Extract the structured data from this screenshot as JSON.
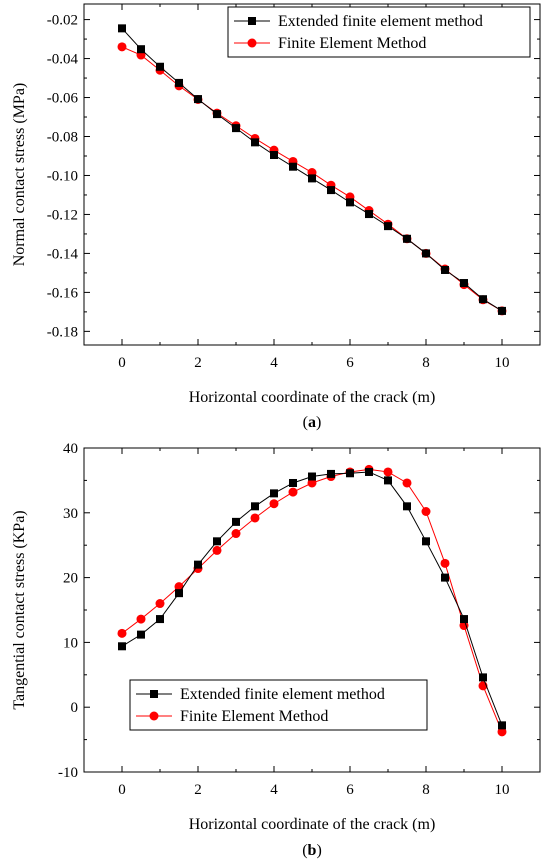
{
  "chart_data": [
    {
      "type": "line",
      "panel_label": "a",
      "xlabel": "Horizontal coordinate of the crack (m)",
      "ylabel": "Normal contact stress (MPa)",
      "xlim": [
        -1,
        11
      ],
      "ylim": [
        -0.187,
        -0.012
      ],
      "xticks": [
        0,
        2,
        4,
        6,
        8,
        10
      ],
      "yticks": [
        -0.02,
        -0.04,
        -0.06,
        -0.08,
        -0.1,
        -0.12,
        -0.14,
        -0.16,
        -0.18
      ],
      "ytick_labels": [
        "-0.02",
        "-0.04",
        "-0.06",
        "-0.08",
        "-0.10",
        "-0.12",
        "-0.14",
        "-0.16",
        "-0.18"
      ],
      "legend_position": "top-right",
      "x": [
        0,
        0.5,
        1,
        1.5,
        2,
        2.5,
        3,
        3.5,
        4,
        4.5,
        5,
        5.5,
        6,
        6.5,
        7,
        7.5,
        8,
        8.5,
        9,
        9.5,
        10
      ],
      "series": [
        {
          "name": "Extended finite element method",
          "color": "#000000",
          "marker": "square",
          "values": [
            -0.0245,
            -0.0352,
            -0.0442,
            -0.0525,
            -0.0608,
            -0.0685,
            -0.0757,
            -0.083,
            -0.0895,
            -0.0955,
            -0.1015,
            -0.1075,
            -0.1138,
            -0.1198,
            -0.126,
            -0.1325,
            -0.14,
            -0.1485,
            -0.1552,
            -0.1635,
            -0.1695
          ]
        },
        {
          "name": "Finite Element Method",
          "color": "#ff0000",
          "marker": "circle",
          "values": [
            -0.034,
            -0.0382,
            -0.046,
            -0.054,
            -0.061,
            -0.068,
            -0.0745,
            -0.081,
            -0.087,
            -0.0928,
            -0.0985,
            -0.105,
            -0.111,
            -0.118,
            -0.125,
            -0.1325,
            -0.14,
            -0.148,
            -0.156,
            -0.1638,
            -0.1695
          ]
        }
      ]
    },
    {
      "type": "line",
      "panel_label": "b",
      "xlabel": "Horizontal coordinate of the crack (m)",
      "ylabel": "Tangential contact stress (KPa)",
      "xlim": [
        -1,
        11
      ],
      "ylim": [
        -10,
        40
      ],
      "xticks": [
        0,
        2,
        4,
        6,
        8,
        10
      ],
      "yticks": [
        -10,
        0,
        10,
        20,
        30,
        40
      ],
      "ytick_labels": [
        "-10",
        "0",
        "10",
        "20",
        "30",
        "40"
      ],
      "legend_position": "bottom-left",
      "x": [
        0,
        0.5,
        1,
        1.5,
        2,
        2.5,
        3,
        3.5,
        4,
        4.5,
        5,
        5.5,
        6,
        6.5,
        7,
        7.5,
        8,
        8.5,
        9,
        9.5,
        10
      ],
      "series": [
        {
          "name": "Extended finite element method",
          "color": "#000000",
          "marker": "square",
          "values": [
            9.4,
            11.2,
            13.6,
            17.6,
            22.0,
            25.6,
            28.6,
            31.0,
            33.0,
            34.6,
            35.6,
            36.0,
            36.1,
            36.3,
            35.0,
            31.0,
            25.6,
            20.0,
            13.6,
            4.6,
            -2.8
          ]
        },
        {
          "name": "Finite Element Method",
          "color": "#ff0000",
          "marker": "circle",
          "values": [
            11.4,
            13.6,
            16.0,
            18.6,
            21.4,
            24.2,
            26.8,
            29.2,
            31.4,
            33.2,
            34.6,
            35.6,
            36.3,
            36.7,
            36.3,
            34.6,
            30.2,
            22.2,
            12.6,
            3.3,
            -3.8
          ]
        }
      ]
    }
  ]
}
